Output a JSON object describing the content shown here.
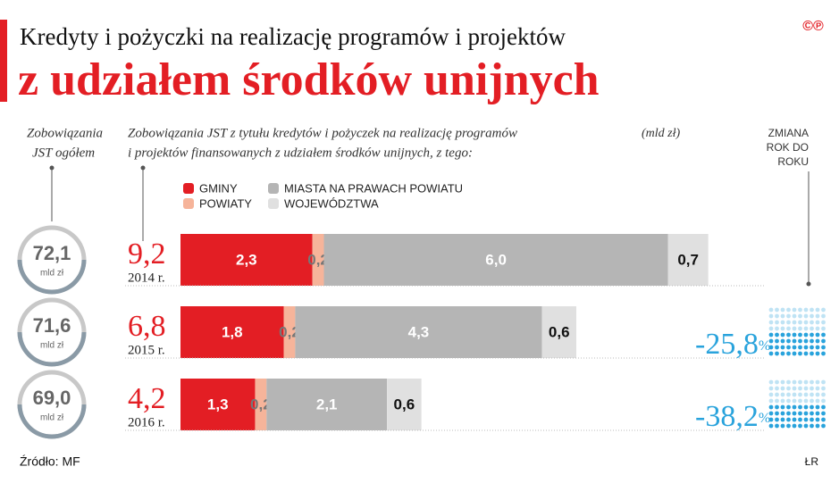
{
  "chart_data": {
    "type": "bar",
    "title": "Kredyty i pożyczki na realizację programów i projektów",
    "subtitle": "z udziałem środków unijnych",
    "logo": "©℗",
    "left_header": [
      "Zobowiązania",
      "JST ogółem"
    ],
    "main_header": [
      "Zobowiązania JST z tytułu kredytów i pożyczek na realizację programów",
      "i projektów finansowanych z udziałem środków unijnych, z tego:"
    ],
    "unit_note": "(mld zł)",
    "change_header": [
      "ZMIANA",
      "ROK DO",
      "ROKU"
    ],
    "categories": [
      "2014 r.",
      "2015 r.",
      "2016 r."
    ],
    "series": [
      {
        "name": "GMINY",
        "color": "#e31e24",
        "label_color": "#ffffff",
        "values": [
          2.3,
          1.8,
          1.3
        ],
        "value_labels": [
          "2,3",
          "1,8",
          "1,3"
        ]
      },
      {
        "name": "POWIATY",
        "color": "#f6b49a",
        "label_color": "#777777",
        "values": [
          0.2,
          0.2,
          0.2
        ],
        "value_labels": [
          "0,2",
          "0,2",
          "0,2"
        ]
      },
      {
        "name": "MIASTA NA PRAWACH POWIATU",
        "color": "#b5b5b5",
        "label_color": "#ffffff",
        "values": [
          6.0,
          4.3,
          2.1
        ],
        "value_labels": [
          "6,0",
          "4,3",
          "2,1"
        ]
      },
      {
        "name": "WOJEWÓDZTWA",
        "color": "#e0e0e0",
        "label_color": "#111111",
        "values": [
          0.7,
          0.6,
          0.6
        ],
        "value_labels": [
          "0,7",
          "0,6",
          "0,6"
        ]
      }
    ],
    "year_totals": {
      "color": "#e31e24",
      "values": [
        9.2,
        6.8,
        4.2
      ],
      "value_labels": [
        "9,2",
        "6,8",
        "4,2"
      ]
    },
    "jst_totals": {
      "unit": "mld zł",
      "values": [
        72.1,
        71.6,
        69.0
      ],
      "value_labels": [
        "72,1",
        "71,6",
        "69,0"
      ]
    },
    "changes": {
      "unit": "%",
      "color": "#29a3dc",
      "values": [
        null,
        -25.8,
        -38.2
      ],
      "value_labels": [
        null,
        "-25,8",
        "-38,2"
      ]
    },
    "source": "Źródło: MF",
    "author": "ŁR"
  }
}
